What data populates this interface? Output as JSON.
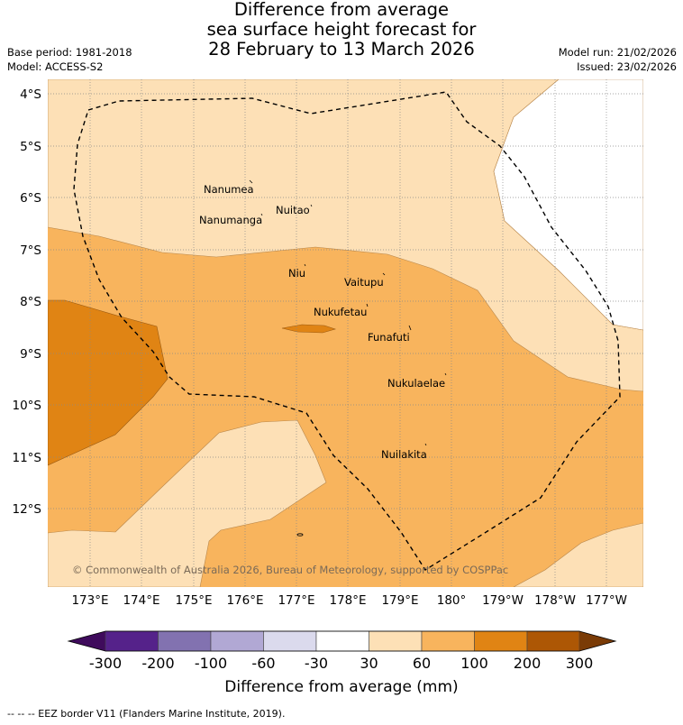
{
  "header": {
    "title_line1": "Difference from average",
    "title_line2": "sea surface height forecast for",
    "title_line3": "28 February to 13 March 2026",
    "base_period": "Base period: 1981-2018",
    "model": "Model: ACCESS-S2",
    "model_run": "Model run: 21/02/2026",
    "issued": "Issued: 23/02/2026"
  },
  "map": {
    "lat_labels": [
      "4°S",
      "5°S",
      "6°S",
      "7°S",
      "8°S",
      "9°S",
      "10°S",
      "11°S",
      "12°S"
    ],
    "lon_labels": [
      "173°E",
      "174°E",
      "175°E",
      "176°E",
      "177°E",
      "178°E",
      "179°E",
      "180°",
      "179°W",
      "178°W",
      "177°W"
    ],
    "islands": [
      "Nanumea",
      "Nuitao",
      "Nanumanga",
      "Niu",
      "Vaitupu",
      "Nukufetau",
      "Funafuti",
      "Nukulaelae",
      "Nuilakita"
    ],
    "copyright": "© Commonwealth of Australia 2026, Bureau of Meteorology, supported by COSPPac",
    "colors": {
      "band_30_60": "#fde0b6",
      "band_60_100": "#f8b45d",
      "band_100_200": "#e08414",
      "band_200_300": "#ad5705",
      "land_grid": "#999999"
    }
  },
  "colorbar": {
    "ticks": [
      "-300",
      "-200",
      "-100",
      "-60",
      "-30",
      "30",
      "60",
      "100",
      "200",
      "300"
    ],
    "colors": [
      "#3f0b5c",
      "#55228a",
      "#8272b0",
      "#b1a8d4",
      "#dbdaed",
      "#ffffff",
      "#fde0b6",
      "#f8b45d",
      "#e08414",
      "#ad5705",
      "#7a3b06"
    ],
    "title": "Difference from average (mm)"
  },
  "footer": {
    "legend_text": "--  --  -- EEZ border V11 (Flanders Marine Institute, 2019)."
  }
}
